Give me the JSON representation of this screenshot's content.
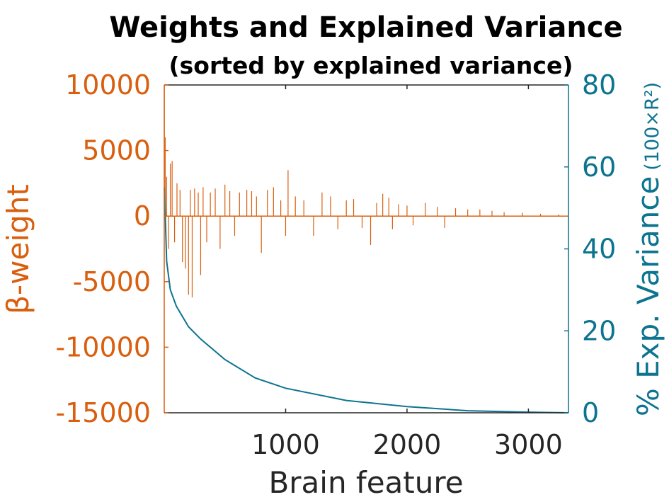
{
  "chart_data": {
    "type": "bar",
    "title": "Weights and Explained Variance",
    "subtitle": "(sorted by explained variance)",
    "xlabel": "Brain feature",
    "ylabel_left": "β-weight",
    "ylabel_right_main": "% Exp. Variance",
    "ylabel_right_suffix": "(100×R²)",
    "xlim": [
      0,
      3330
    ],
    "ylim_left": [
      -15000,
      10000
    ],
    "ylim_right": [
      0,
      80
    ],
    "x_ticks": [
      1000,
      2000,
      3000
    ],
    "x_tick_labels": [
      "1000",
      "2000",
      "3000"
    ],
    "y_left_ticks": [
      10000,
      5000,
      0,
      -5000,
      -10000,
      -15000
    ],
    "y_left_tick_labels": [
      "10000",
      "5000",
      "0",
      "-5000",
      "-10000",
      "-15000"
    ],
    "y_right_ticks": [
      80,
      60,
      40,
      20,
      0
    ],
    "y_right_tick_labels": [
      "80",
      "60",
      "40",
      "20",
      "0"
    ],
    "colors": {
      "weights": "#d95f0e",
      "variance": "#0d7490",
      "axis_text": "#262626"
    },
    "grid": false,
    "series": [
      {
        "kind": "bar",
        "axis": "left",
        "x": [
          1,
          8,
          20,
          35,
          50,
          65,
          85,
          105,
          130,
          150,
          175,
          200,
          215,
          230,
          250,
          280,
          300,
          320,
          350,
          380,
          420,
          460,
          500,
          540,
          580,
          620,
          680,
          720,
          760,
          800,
          850,
          900,
          960,
          1000,
          1020,
          1080,
          1150,
          1230,
          1300,
          1370,
          1430,
          1500,
          1560,
          1630,
          1700,
          1750,
          1800,
          1850,
          1880,
          1930,
          2000,
          2050,
          2150,
          2250,
          2310,
          2400,
          2500,
          2600,
          2700,
          2800,
          2950,
          3100,
          3250
        ],
        "values": [
          10000,
          6000,
          3000,
          -2500,
          4000,
          4200,
          -2000,
          2500,
          2000,
          -3500,
          -4000,
          -6000,
          2000,
          -6200,
          2100,
          1800,
          -4500,
          2200,
          -2000,
          1800,
          2100,
          -2500,
          2400,
          1900,
          -1500,
          1800,
          2000,
          1900,
          1500,
          -2800,
          2000,
          2200,
          1200,
          -1500,
          3500,
          1500,
          1200,
          -1500,
          1800,
          1500,
          -1000,
          1200,
          1300,
          -900,
          -2200,
          1000,
          1700,
          1400,
          -1000,
          900,
          800,
          -700,
          1000,
          700,
          -900,
          600,
          500,
          500,
          400,
          300,
          250,
          180,
          120
        ]
      },
      {
        "kind": "line",
        "axis": "right",
        "x": [
          1,
          20,
          50,
          100,
          200,
          300,
          500,
          750,
          1000,
          1500,
          2000,
          2500,
          3000,
          3330
        ],
        "values": [
          55,
          37,
          30,
          26,
          21,
          18,
          13,
          8.5,
          6,
          3,
          1.5,
          0.5,
          0.15,
          0
        ]
      }
    ]
  }
}
